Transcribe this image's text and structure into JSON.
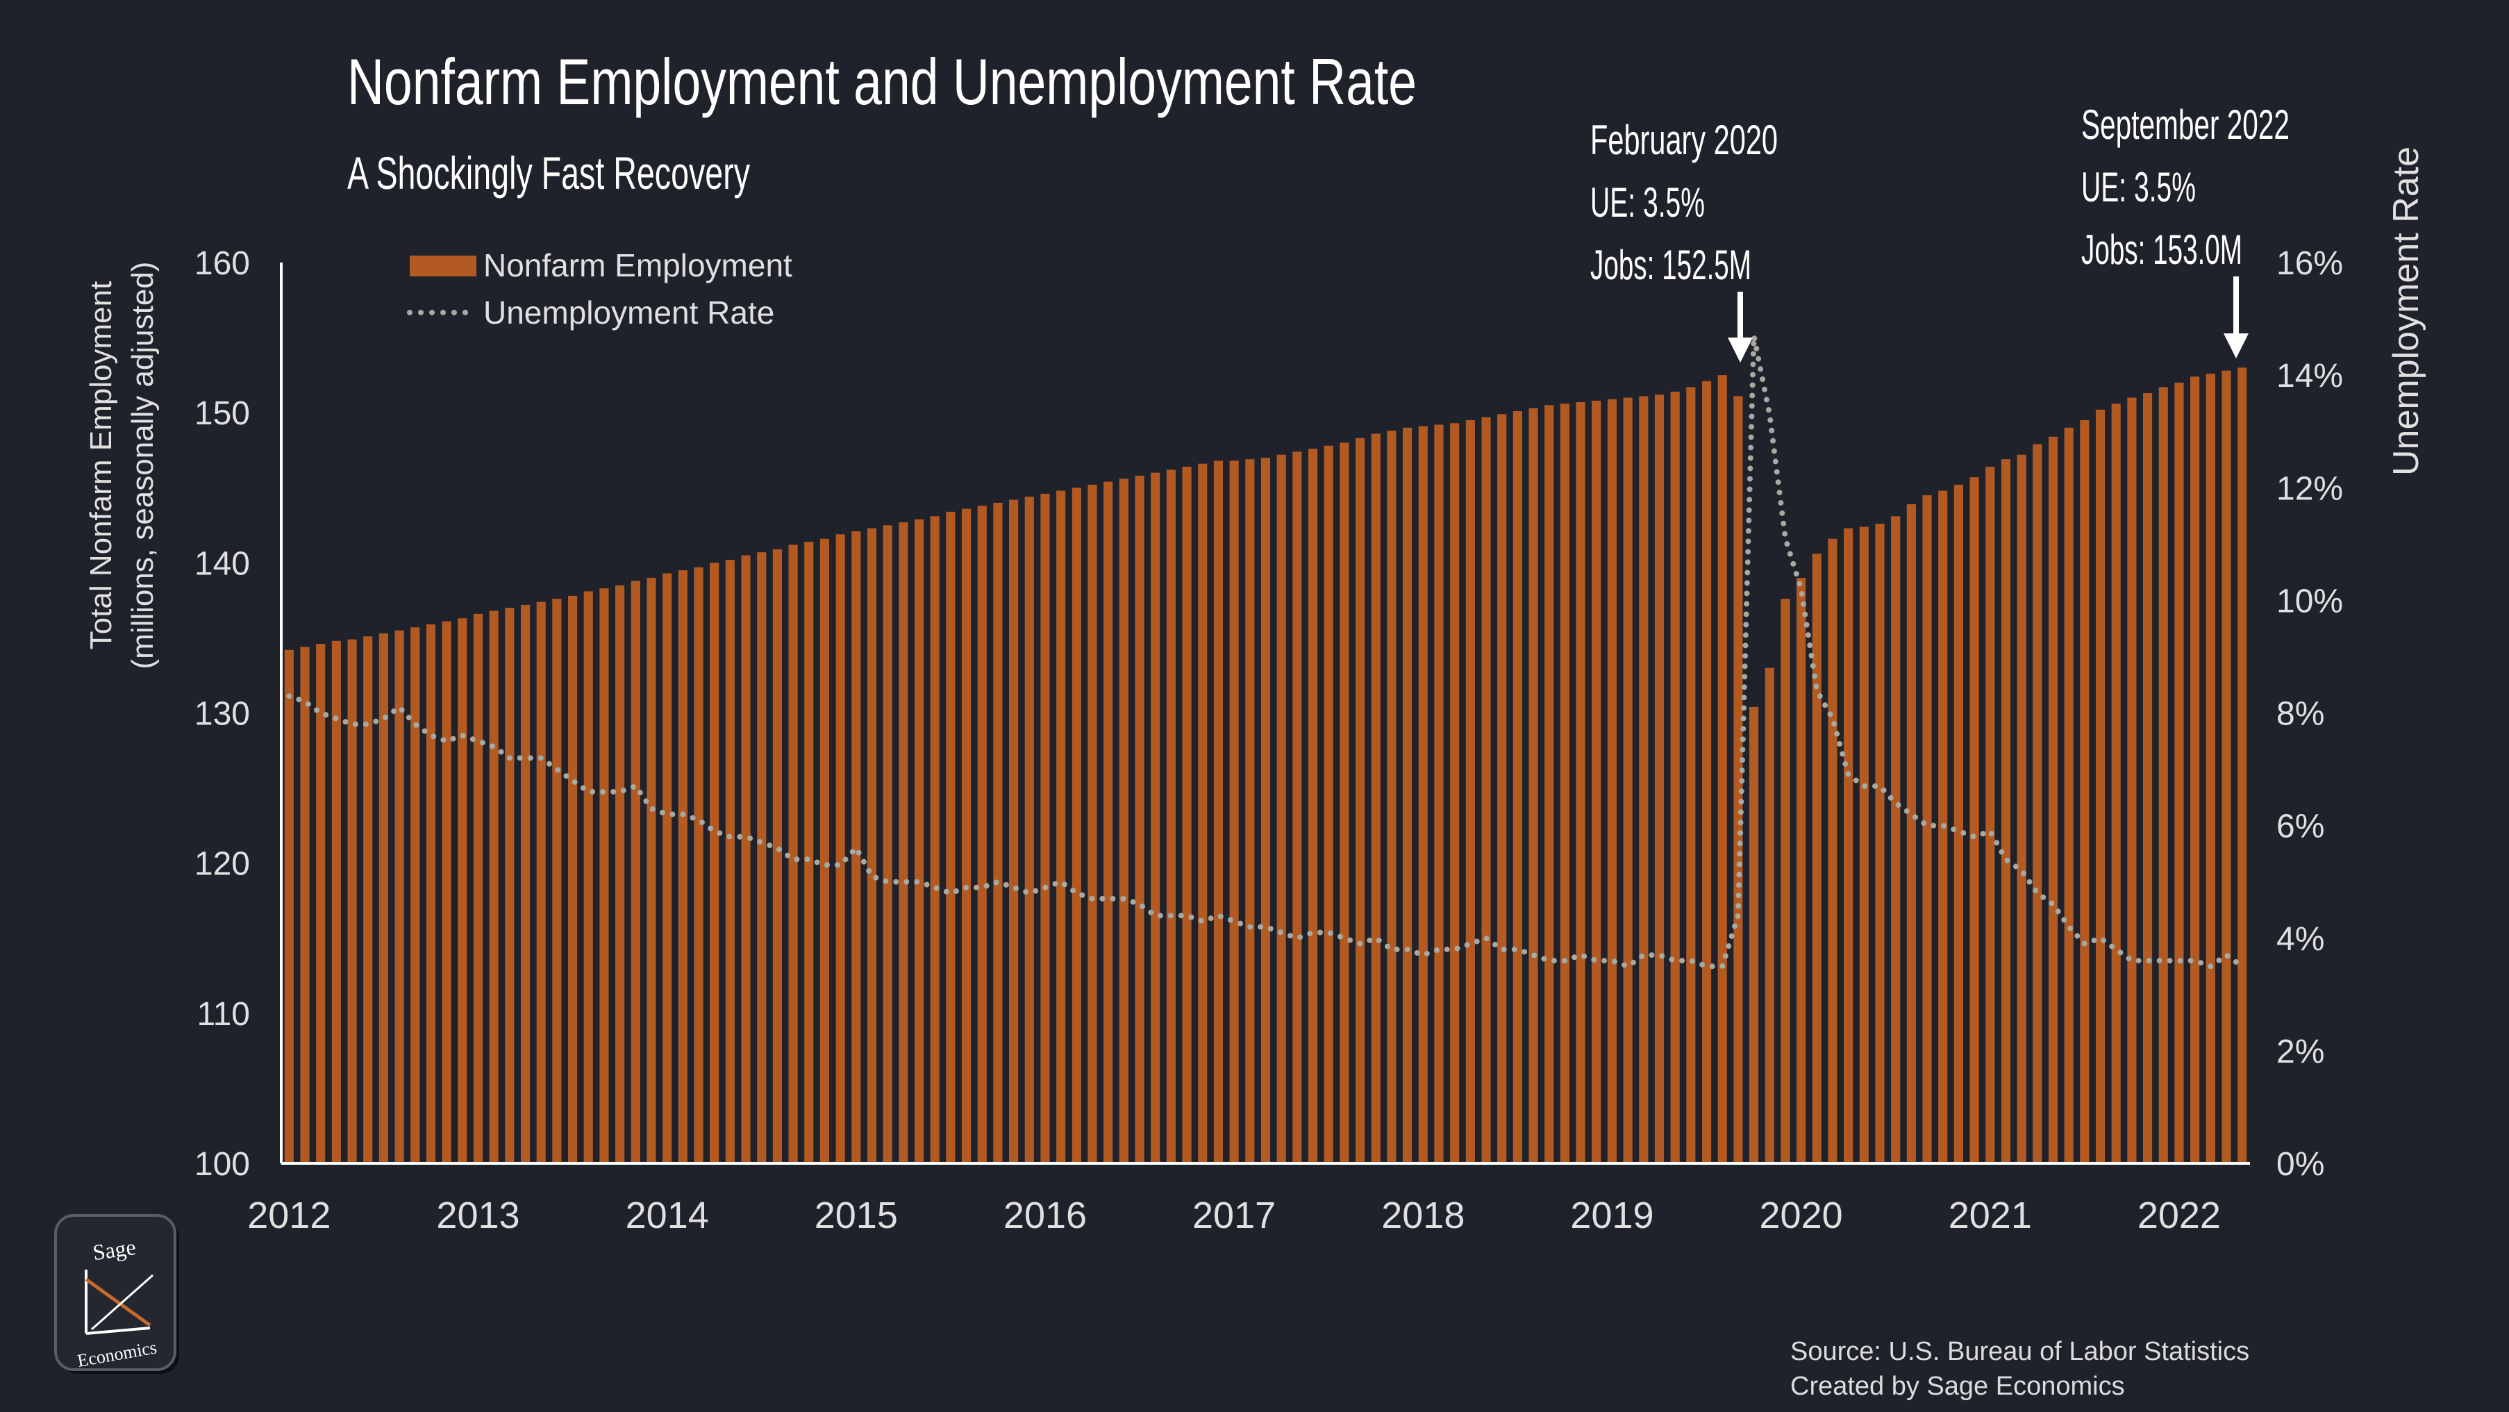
{
  "chart_data": {
    "type": "bar",
    "title": "Nonfarm Employment and Unemployment Rate",
    "subtitle": "A Shockingly Fast Recovery",
    "ylabel_left": "Total Nonfarm Employment",
    "ylabel_left_sub": "(millions, seasonally adjusted)",
    "ylabel_right": "Unemployment Rate",
    "ylim_left": [
      100,
      160
    ],
    "ylim_right": [
      0,
      16
    ],
    "yticks_left": [
      "100",
      "110",
      "120",
      "130",
      "140",
      "150",
      "160"
    ],
    "yticks_right": [
      "0%",
      "2%",
      "4%",
      "6%",
      "8%",
      "10%",
      "12%",
      "14%",
      "16%"
    ],
    "x_start": "2012-01",
    "x_end": "2022-09",
    "xticks": [
      "2012",
      "2013",
      "2014",
      "2015",
      "2016",
      "2017",
      "2018",
      "2019",
      "2020",
      "2021",
      "2022"
    ],
    "legend_position": "top-left",
    "series": [
      {
        "name": "Nonfarm Employment",
        "kind": "bar",
        "color": "#b35a22",
        "values": [
          134.2,
          134.4,
          134.6,
          134.8,
          134.9,
          135.1,
          135.3,
          135.5,
          135.7,
          135.9,
          136.1,
          136.3,
          136.6,
          136.8,
          137.0,
          137.2,
          137.4,
          137.6,
          137.8,
          138.1,
          138.3,
          138.5,
          138.8,
          139.0,
          139.3,
          139.5,
          139.7,
          140.0,
          140.2,
          140.5,
          140.7,
          140.9,
          141.2,
          141.4,
          141.6,
          141.9,
          142.1,
          142.3,
          142.5,
          142.7,
          142.9,
          143.1,
          143.4,
          143.6,
          143.8,
          144.0,
          144.2,
          144.4,
          144.6,
          144.8,
          145.0,
          145.2,
          145.4,
          145.6,
          145.8,
          146.0,
          146.2,
          146.4,
          146.6,
          146.8,
          146.8,
          146.9,
          147.0,
          147.2,
          147.4,
          147.6,
          147.8,
          148.0,
          148.3,
          148.6,
          148.8,
          149.0,
          149.1,
          149.2,
          149.3,
          149.5,
          149.7,
          149.9,
          150.1,
          150.3,
          150.5,
          150.6,
          150.7,
          150.8,
          150.9,
          151.0,
          151.1,
          151.2,
          151.4,
          151.7,
          152.1,
          152.5,
          151.1,
          130.4,
          133.0,
          137.6,
          139.0,
          140.6,
          141.6,
          142.3,
          142.4,
          142.6,
          143.1,
          143.9,
          144.5,
          144.8,
          145.2,
          145.7,
          146.4,
          146.9,
          147.2,
          147.9,
          148.4,
          149.0,
          149.5,
          150.2,
          150.6,
          151.0,
          151.3,
          151.7,
          152.0,
          152.4,
          152.6,
          152.8,
          153.0
        ]
      },
      {
        "name": "Unemployment Rate",
        "kind": "line",
        "color": "#a8a9a1",
        "values": [
          8.3,
          8.2,
          8.0,
          7.9,
          7.8,
          7.8,
          7.9,
          8.1,
          7.8,
          7.6,
          7.5,
          7.6,
          7.5,
          7.4,
          7.2,
          7.2,
          7.2,
          7.0,
          6.8,
          6.6,
          6.6,
          6.6,
          6.7,
          6.3,
          6.2,
          6.2,
          6.1,
          5.9,
          5.8,
          5.8,
          5.7,
          5.6,
          5.4,
          5.4,
          5.3,
          5.3,
          5.6,
          5.1,
          5.0,
          5.0,
          5.0,
          4.9,
          4.8,
          4.9,
          4.9,
          5.0,
          4.9,
          4.8,
          4.9,
          5.0,
          4.8,
          4.7,
          4.7,
          4.7,
          4.6,
          4.4,
          4.4,
          4.4,
          4.3,
          4.4,
          4.3,
          4.2,
          4.2,
          4.1,
          4.0,
          4.1,
          4.1,
          4.0,
          3.9,
          4.0,
          3.8,
          3.8,
          3.7,
          3.8,
          3.8,
          3.9,
          4.0,
          3.8,
          3.8,
          3.7,
          3.6,
          3.6,
          3.7,
          3.6,
          3.6,
          3.5,
          3.7,
          3.7,
          3.6,
          3.6,
          3.5,
          3.5,
          4.4,
          14.7,
          13.3,
          11.1,
          10.2,
          8.4,
          7.9,
          6.9,
          6.7,
          6.7,
          6.4,
          6.2,
          6.0,
          6.0,
          5.9,
          5.8,
          5.9,
          5.4,
          5.2,
          4.8,
          4.6,
          4.2,
          3.9,
          4.0,
          3.8,
          3.6,
          3.6,
          3.6,
          3.6,
          3.6,
          3.5,
          3.7,
          3.5
        ]
      }
    ],
    "annotations": [
      {
        "line1": "February 2020",
        "line2": "UE: 3.5%",
        "line3": "Jobs: 152.5M",
        "date": "2020-02"
      },
      {
        "line1": "September 2022",
        "line2": "UE: 3.5%",
        "line3": "Jobs: 153.0M",
        "date": "2022-09"
      }
    ]
  },
  "source": {
    "line1": "Source: U.S. Bureau of Labor Statistics",
    "line2": "Created by Sage Economics"
  },
  "logo": {
    "top": "Sage",
    "bottom": "Economics"
  },
  "colors": {
    "background": "#1f222b",
    "bar": "#b35a22",
    "line": "#a8a9a1",
    "text": "#ffffff"
  }
}
